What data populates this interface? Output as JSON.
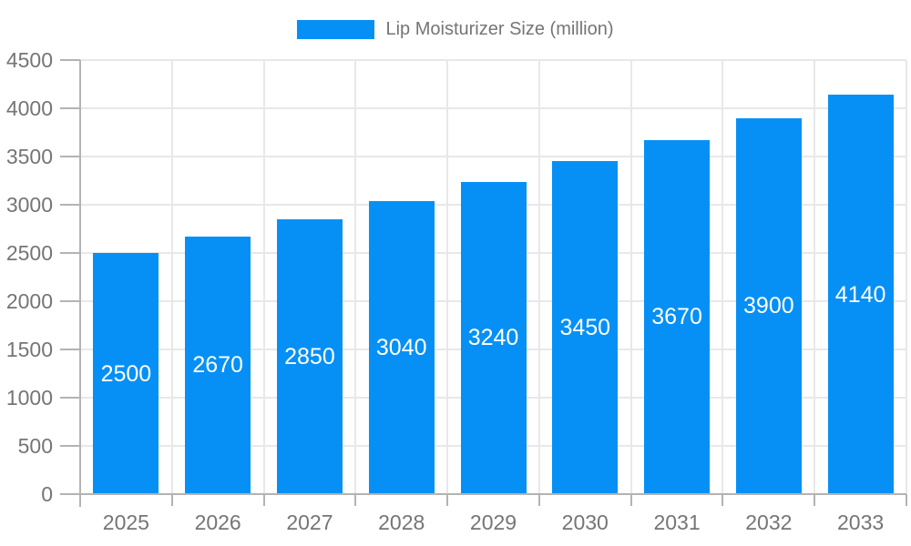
{
  "chart_data": {
    "type": "bar",
    "title": "Lip Moisturizer Size (million)",
    "legend": {
      "label": "Lip Moisturizer Size (million)",
      "position": "top"
    },
    "categories": [
      "2025",
      "2026",
      "2027",
      "2028",
      "2029",
      "2030",
      "2031",
      "2032",
      "2033"
    ],
    "values": [
      2500,
      2670,
      2850,
      3040,
      3240,
      3450,
      3670,
      3900,
      4140
    ],
    "bar_value_labels": [
      "2500",
      "2670",
      "2850",
      "3040",
      "3240",
      "3450",
      "3670",
      "3900",
      "4140"
    ],
    "xlabel": "",
    "ylabel": "",
    "ylim": [
      0,
      4500
    ],
    "yticks": [
      0,
      500,
      1000,
      1500,
      2000,
      2500,
      3000,
      3500,
      4000,
      4500
    ],
    "grid": "on",
    "colors": {
      "bar": "#0690f5",
      "grid": "#e8e8e8",
      "axis": "#b3b3b3",
      "text": "#757575",
      "value_label": "#ffffff"
    }
  }
}
